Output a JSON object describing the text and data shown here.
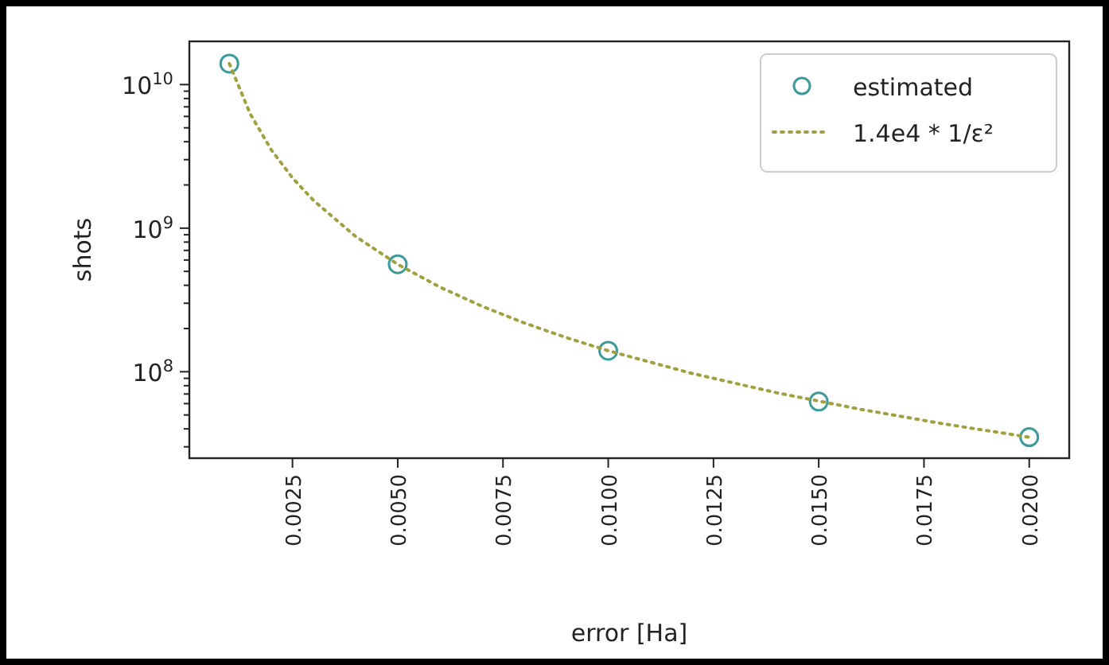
{
  "chart_data": {
    "type": "scatter",
    "xlabel": "error [Ha]",
    "ylabel": "shots",
    "log": "y",
    "legend": "top right",
    "grid": false,
    "xlim": [
      5e-05,
      0.02095
    ],
    "ylim": [
      25000000.0,
      20000000000.0
    ],
    "xticks": [
      {
        "value": 0.0025,
        "label": "0.0025"
      },
      {
        "value": 0.005,
        "label": "0.0050"
      },
      {
        "value": 0.0075,
        "label": "0.0075"
      },
      {
        "value": 0.01,
        "label": "0.0100"
      },
      {
        "value": 0.0125,
        "label": "0.0125"
      },
      {
        "value": 0.015,
        "label": "0.0150"
      },
      {
        "value": 0.0175,
        "label": "0.0175"
      },
      {
        "value": 0.02,
        "label": "0.0200"
      }
    ],
    "yticks": [
      {
        "value": 30000000.0,
        "label": null
      },
      {
        "value": 40000000.0,
        "label": null
      },
      {
        "value": 50000000.0,
        "label": null
      },
      {
        "value": 60000000.0,
        "label": null
      },
      {
        "value": 70000000.0,
        "label": null
      },
      {
        "value": 80000000.0,
        "label": null
      },
      {
        "value": 90000000.0,
        "label": null
      },
      {
        "value": 100000000.0,
        "label": "10$^{8}$"
      },
      {
        "value": 200000000.0,
        "label": null
      },
      {
        "value": 300000000.0,
        "label": null
      },
      {
        "value": 400000000.0,
        "label": null
      },
      {
        "value": 500000000.0,
        "label": null
      },
      {
        "value": 600000000.0,
        "label": null
      },
      {
        "value": 700000000.0,
        "label": null
      },
      {
        "value": 800000000.0,
        "label": null
      },
      {
        "value": 900000000.0,
        "label": null
      },
      {
        "value": 1000000000.0,
        "label": "10$^{9}$"
      },
      {
        "value": 2000000000.0,
        "label": null
      },
      {
        "value": 3000000000.0,
        "label": null
      },
      {
        "value": 4000000000.0,
        "label": null
      },
      {
        "value": 5000000000.0,
        "label": null
      },
      {
        "value": 6000000000.0,
        "label": null
      },
      {
        "value": 7000000000.0,
        "label": null
      },
      {
        "value": 8000000000.0,
        "label": null
      },
      {
        "value": 9000000000.0,
        "label": null
      },
      {
        "value": 10000000000.0,
        "label": "10$^{10}$"
      }
    ],
    "series": [
      {
        "name": "estimated",
        "marker": "circle",
        "color": "#3f9a9a",
        "x": [
          0.001,
          0.005,
          0.01,
          0.015,
          0.02
        ],
        "values": [
          14000000000.0,
          560000000.0,
          140000000.0,
          62000000.0,
          35000000.0
        ]
      },
      {
        "name": "1.4e4 * 1/ε²",
        "type": "line",
        "line_style": "dotted",
        "marker": "none",
        "color": "#a0a040",
        "x": [
          0.001,
          0.0015,
          0.002,
          0.0025,
          0.003,
          0.004,
          0.005,
          0.006,
          0.007,
          0.008,
          0.009,
          0.01,
          0.012,
          0.014,
          0.016,
          0.018,
          0.02
        ],
        "values": [
          14000000000.0,
          6220000000.0,
          3500000000.0,
          2240000000.0,
          1560000000.0,
          875000000.0,
          560000000.0,
          389000000.0,
          286000000.0,
          219000000.0,
          173000000.0,
          140000000.0,
          97200000.0,
          71400000.0,
          54700000.0,
          43200000.0,
          35000000.0
        ]
      }
    ]
  }
}
